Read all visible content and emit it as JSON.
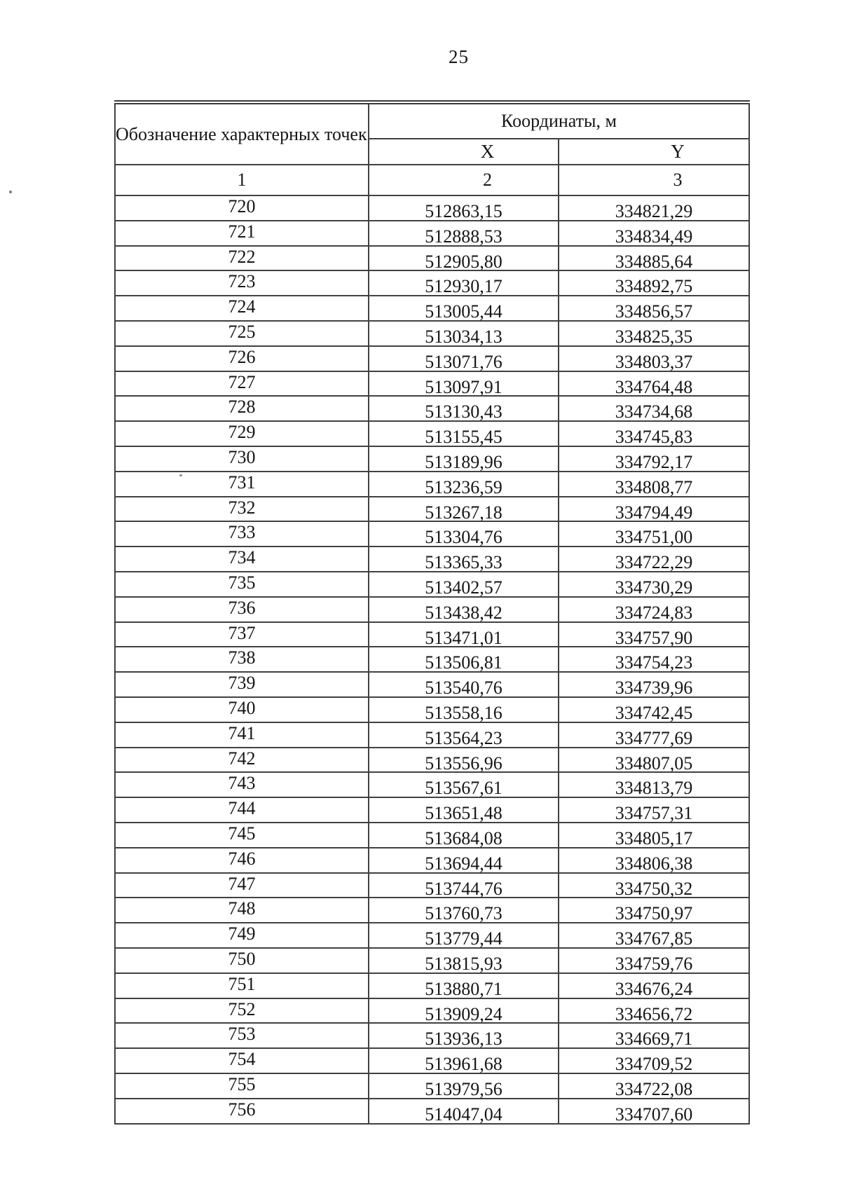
{
  "page": {
    "number": "25"
  },
  "table": {
    "header": {
      "points_label": "Обозначение характерных точек границ",
      "coords_label": "Координаты, м",
      "x_label": "X",
      "y_label": "Y",
      "col_nums": [
        "1",
        "2",
        "3"
      ]
    },
    "rows": [
      {
        "n": "720",
        "x": "512863,15",
        "y": "334821,29"
      },
      {
        "n": "721",
        "x": "512888,53",
        "y": "334834,49"
      },
      {
        "n": "722",
        "x": "512905,80",
        "y": "334885,64"
      },
      {
        "n": "723",
        "x": "512930,17",
        "y": "334892,75"
      },
      {
        "n": "724",
        "x": "513005,44",
        "y": "334856,57"
      },
      {
        "n": "725",
        "x": "513034,13",
        "y": "334825,35"
      },
      {
        "n": "726",
        "x": "513071,76",
        "y": "334803,37"
      },
      {
        "n": "727",
        "x": "513097,91",
        "y": "334764,48"
      },
      {
        "n": "728",
        "x": "513130,43",
        "y": "334734,68"
      },
      {
        "n": "729",
        "x": "513155,45",
        "y": "334745,83"
      },
      {
        "n": "730",
        "x": "513189,96",
        "y": "334792,17"
      },
      {
        "n": "731",
        "x": "513236,59",
        "y": "334808,77"
      },
      {
        "n": "732",
        "x": "513267,18",
        "y": "334794,49"
      },
      {
        "n": "733",
        "x": "513304,76",
        "y": "334751,00"
      },
      {
        "n": "734",
        "x": "513365,33",
        "y": "334722,29"
      },
      {
        "n": "735",
        "x": "513402,57",
        "y": "334730,29"
      },
      {
        "n": "736",
        "x": "513438,42",
        "y": "334724,83"
      },
      {
        "n": "737",
        "x": "513471,01",
        "y": "334757,90"
      },
      {
        "n": "738",
        "x": "513506,81",
        "y": "334754,23"
      },
      {
        "n": "739",
        "x": "513540,76",
        "y": "334739,96"
      },
      {
        "n": "740",
        "x": "513558,16",
        "y": "334742,45"
      },
      {
        "n": "741",
        "x": "513564,23",
        "y": "334777,69"
      },
      {
        "n": "742",
        "x": "513556,96",
        "y": "334807,05"
      },
      {
        "n": "743",
        "x": "513567,61",
        "y": "334813,79"
      },
      {
        "n": "744",
        "x": "513651,48",
        "y": "334757,31"
      },
      {
        "n": "745",
        "x": "513684,08",
        "y": "334805,17"
      },
      {
        "n": "746",
        "x": "513694,44",
        "y": "334806,38"
      },
      {
        "n": "747",
        "x": "513744,76",
        "y": "334750,32"
      },
      {
        "n": "748",
        "x": "513760,73",
        "y": "334750,97"
      },
      {
        "n": "749",
        "x": "513779,44",
        "y": "334767,85"
      },
      {
        "n": "750",
        "x": "513815,93",
        "y": "334759,76"
      },
      {
        "n": "751",
        "x": "513880,71",
        "y": "334676,24"
      },
      {
        "n": "752",
        "x": "513909,24",
        "y": "334656,72"
      },
      {
        "n": "753",
        "x": "513936,13",
        "y": "334669,71"
      },
      {
        "n": "754",
        "x": "513961,68",
        "y": "334709,52"
      },
      {
        "n": "755",
        "x": "513979,56",
        "y": "334722,08"
      },
      {
        "n": "756",
        "x": "514047,04",
        "y": "334707,60"
      }
    ]
  }
}
